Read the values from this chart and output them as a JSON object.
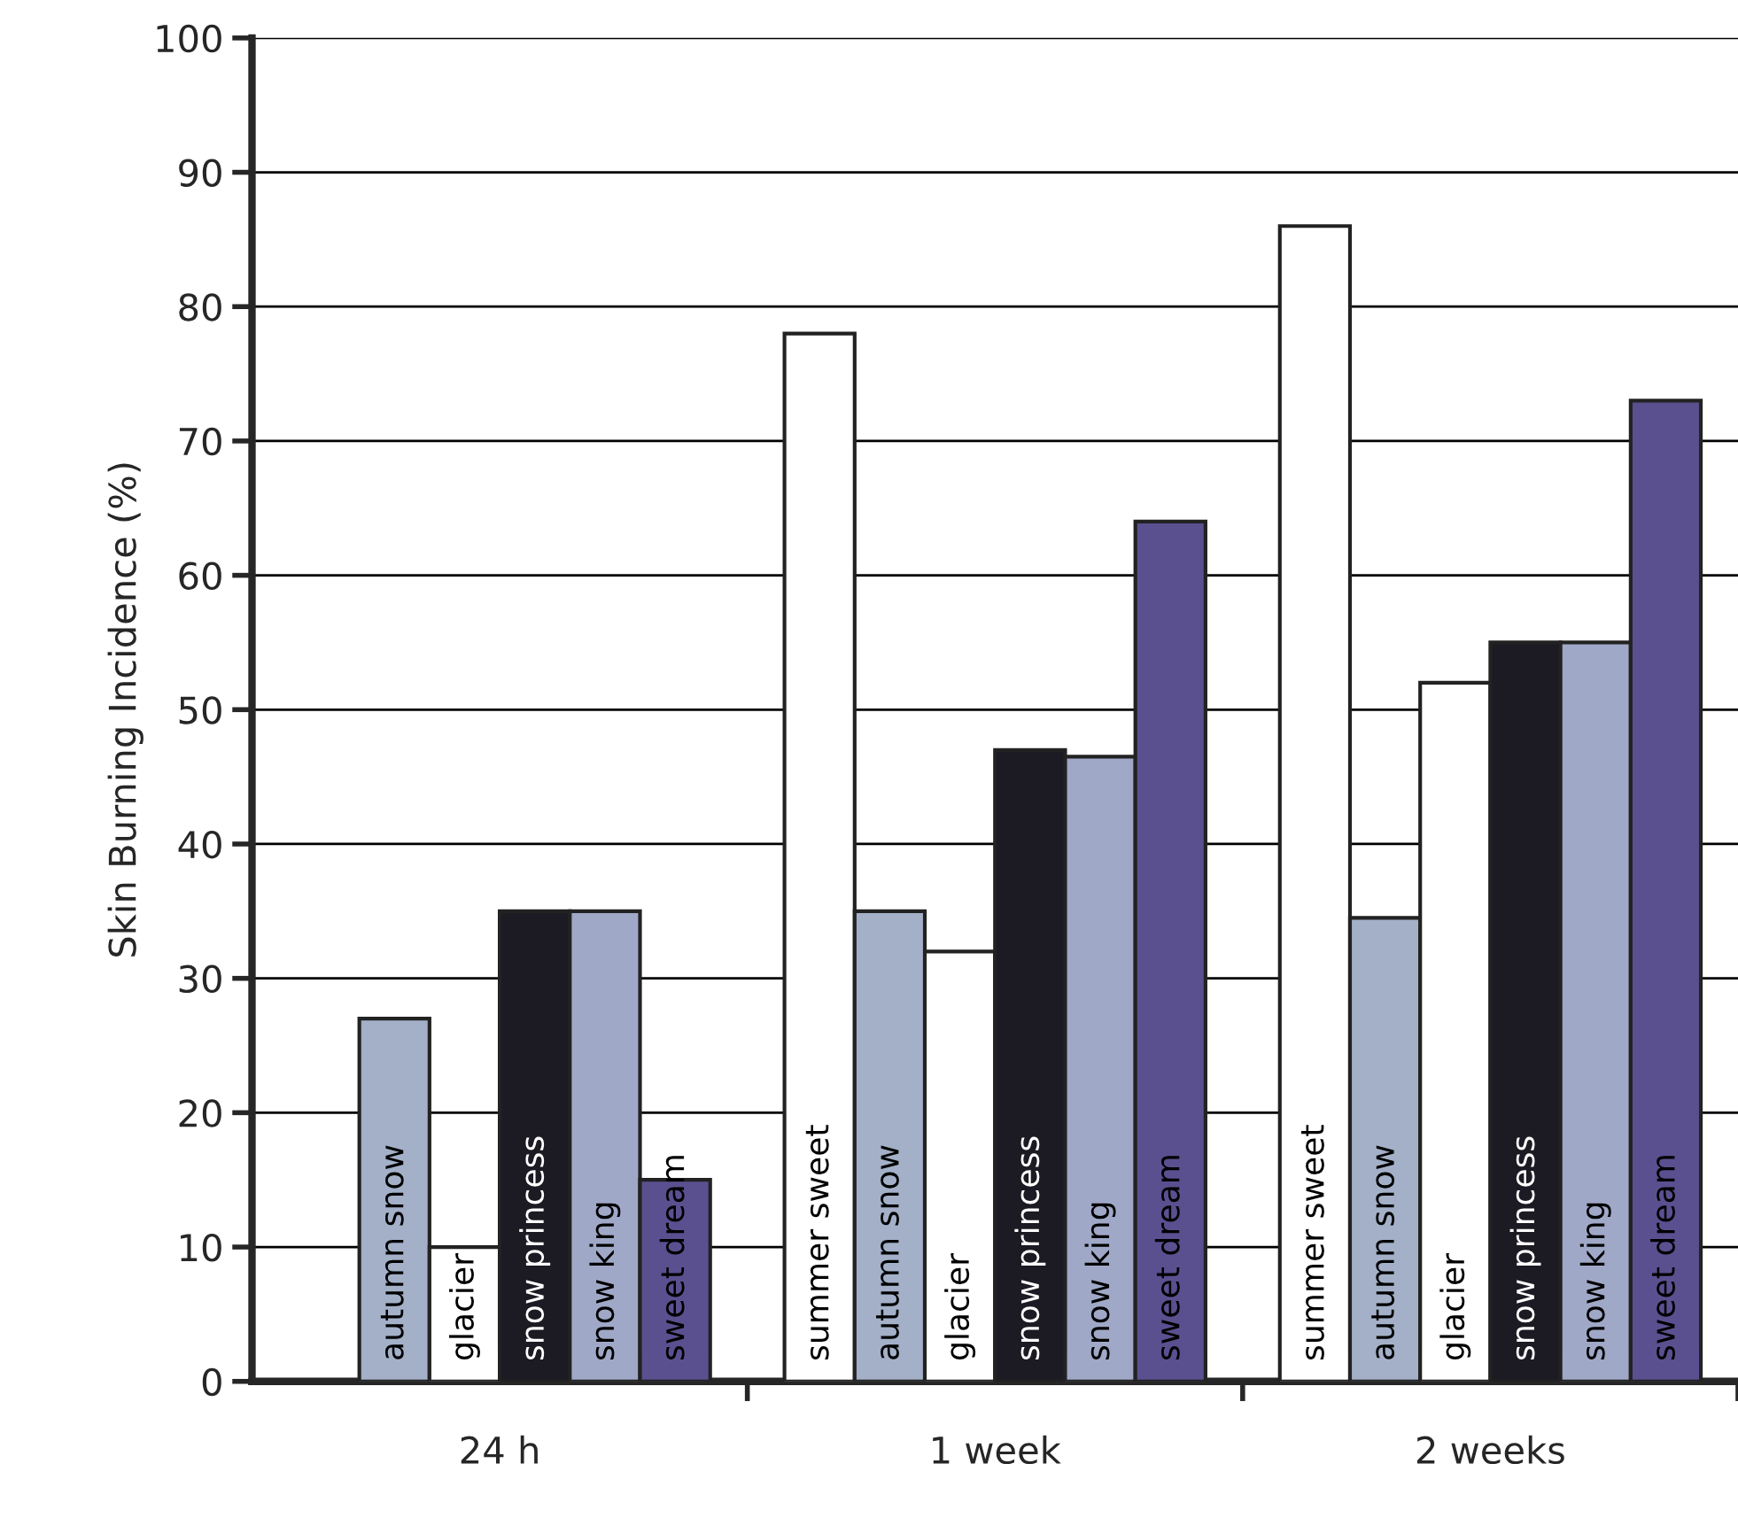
{
  "chart_data": {
    "type": "bar",
    "ylabel": "Skin Burning Incidence (%)",
    "categories": [
      "24 h",
      "1 week",
      "2 weeks"
    ],
    "series": [
      {
        "name": "summer sweet",
        "color": "#ffffff",
        "values": [
          null,
          78,
          86
        ]
      },
      {
        "name": "autumn snow",
        "color": "#a3b0c8",
        "values": [
          27,
          35,
          34.5
        ]
      },
      {
        "name": "glacier",
        "color": "#ffffff",
        "values": [
          10,
          32,
          52
        ]
      },
      {
        "name": "snow princess",
        "color": "#1c1a22",
        "values": [
          35,
          47,
          55
        ]
      },
      {
        "name": "snow king",
        "color": "#a0a8c8",
        "values": [
          35,
          46.5,
          55
        ]
      },
      {
        "name": "sweet dream",
        "color": "#5a5090",
        "values": [
          15,
          64,
          73
        ]
      }
    ],
    "ylim": [
      0,
      100
    ],
    "yticks": [
      0,
      10,
      20,
      30,
      40,
      50,
      60,
      70,
      80,
      90,
      100
    ],
    "grid": "y",
    "legend": false
  }
}
